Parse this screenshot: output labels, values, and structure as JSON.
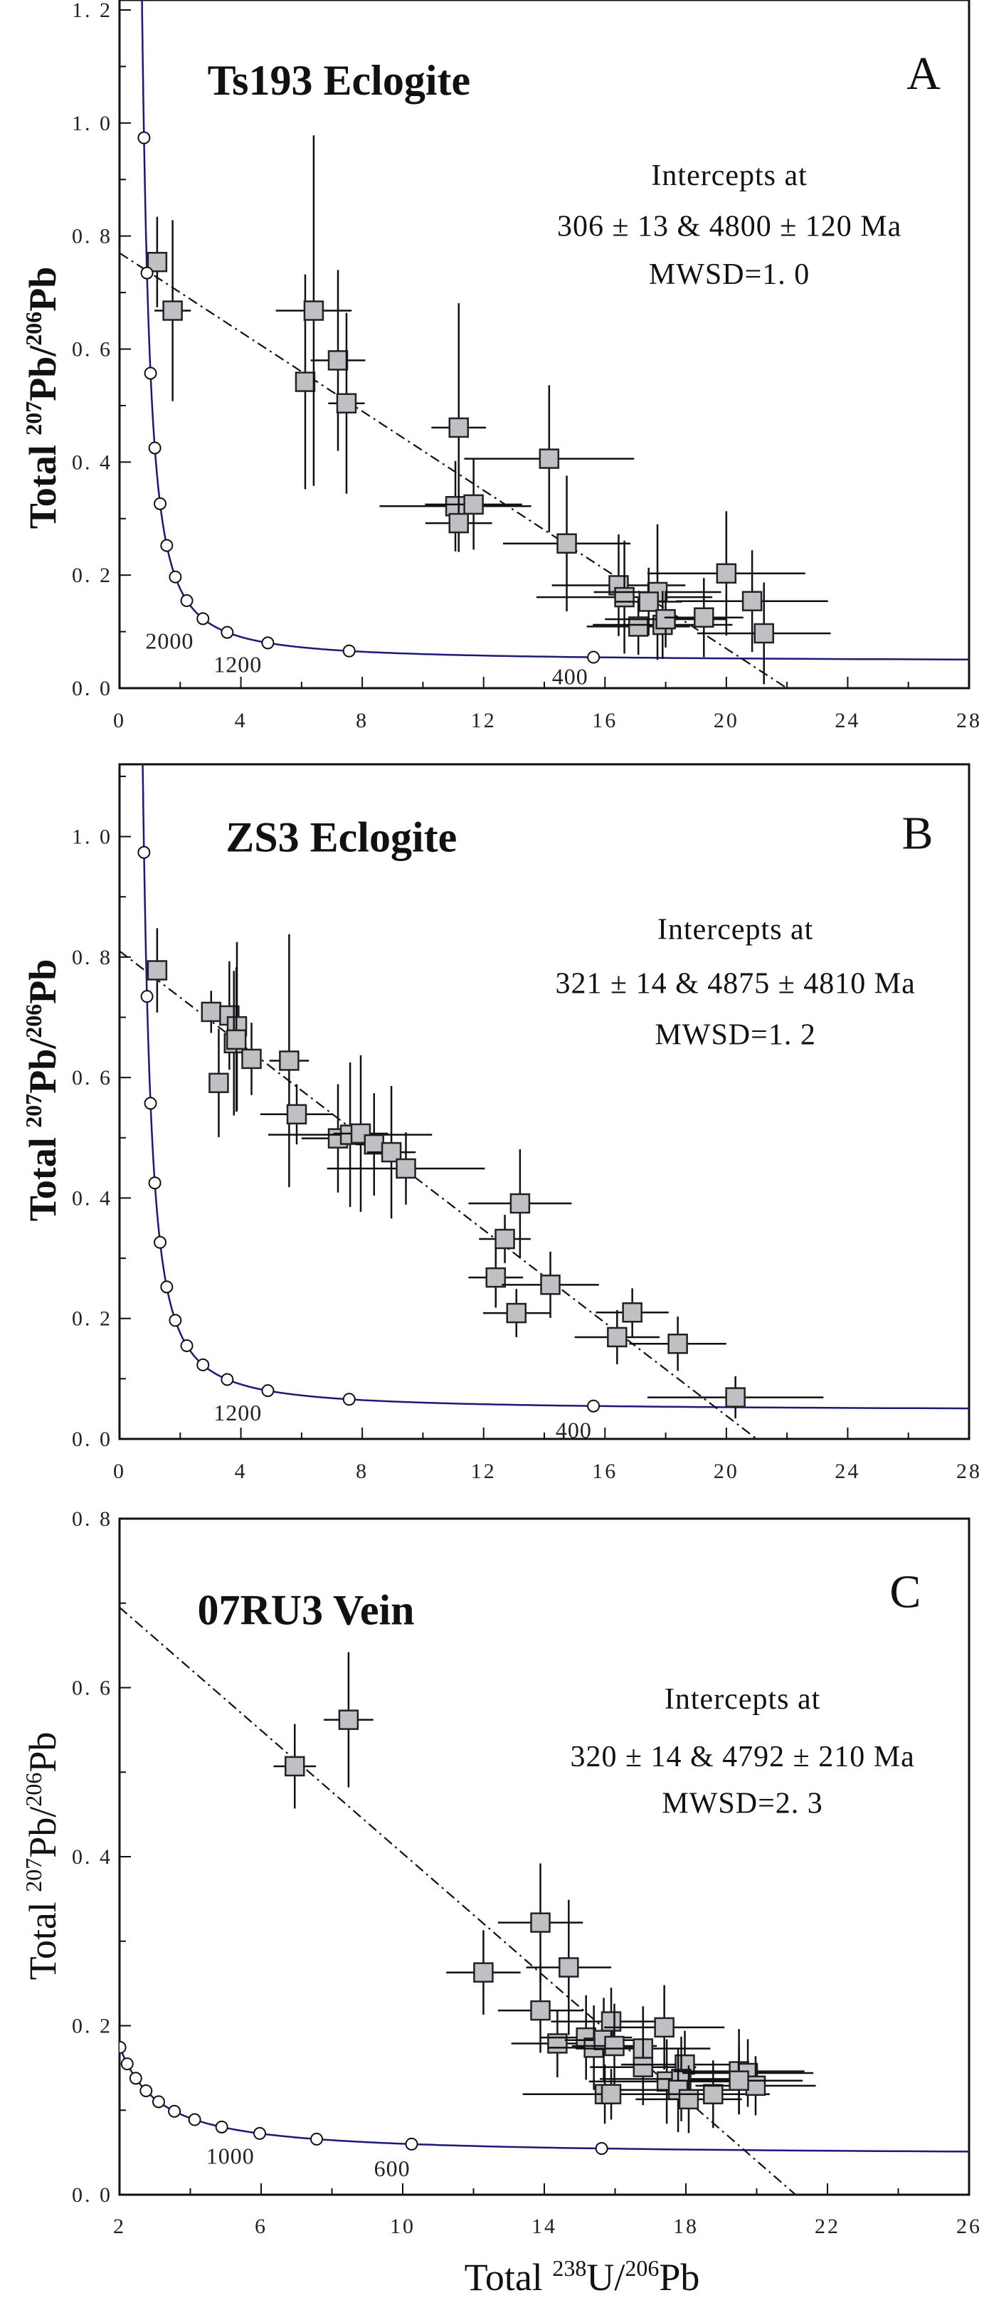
{
  "chart_data": [
    {
      "type": "scatter",
      "panel": "A",
      "title": "Ts193  Eclogite",
      "ylabel": {
        "prefix": "Total ",
        "sup1": "207",
        "mid": "Pb/",
        "sup2": "206",
        "suffix": "Pb"
      },
      "xlim": [
        0,
        28
      ],
      "ylim": [
        0,
        1.2
      ],
      "xticks": [
        0,
        4,
        8,
        12,
        16,
        20,
        24,
        28
      ],
      "yticks": [
        0,
        0.2,
        0.4,
        0.6,
        0.8,
        1.0,
        1.2
      ],
      "ytick_labels": [
        "0. 0",
        "0. 2",
        "0. 4",
        "0. 6",
        "0. 8",
        "1. 0",
        "1. 2"
      ],
      "annotation": [
        "Intercepts at",
        "306 ± 13 & 4800 ± 120 Ma",
        "MWSD=1. 0"
      ],
      "discordia": [
        [
          0,
          0.77
        ],
        [
          22.0,
          0
        ]
      ],
      "concordia_ages_ma": [
        400,
        800,
        1200,
        1600,
        2000,
        2400,
        2800,
        3200,
        3600,
        4000,
        4400,
        4800,
        5200
      ],
      "age_labels": [
        {
          "text": "2000",
          "x": 1.65,
          "y": 0.084
        },
        {
          "text": "1200",
          "x": 3.9,
          "y": 0.042
        },
        {
          "text": "400",
          "x": 14.85,
          "y": 0.021
        }
      ],
      "points": [
        [
          1.24,
          0.754,
          0.2,
          0.08
        ],
        [
          1.75,
          0.668,
          0.6,
          0.16
        ],
        [
          6.12,
          0.542,
          0.2,
          0.19
        ],
        [
          6.4,
          0.668,
          1.25,
          0.31
        ],
        [
          7.2,
          0.58,
          0.9,
          0.16
        ],
        [
          7.48,
          0.504,
          0.6,
          0.16
        ],
        [
          11.18,
          0.461,
          0.9,
          0.22
        ],
        [
          11.07,
          0.322,
          2.5,
          0.08
        ],
        [
          11.67,
          0.325,
          1.6,
          0.08
        ],
        [
          11.18,
          0.292,
          1.1,
          0.05
        ],
        [
          14.16,
          0.406,
          2.8,
          0.13
        ],
        [
          14.74,
          0.256,
          2.1,
          0.12
        ],
        [
          16.45,
          0.182,
          2.2,
          0.09
        ],
        [
          16.64,
          0.161,
          2.9,
          0.1
        ],
        [
          17.73,
          0.17,
          2.1,
          0.12
        ],
        [
          17.44,
          0.153,
          1.1,
          0.06
        ],
        [
          17.1,
          0.109,
          1.7,
          0.05
        ],
        [
          17.9,
          0.112,
          2.3,
          0.06
        ],
        [
          18.0,
          0.122,
          2.0,
          0.05
        ],
        [
          19.26,
          0.125,
          1.3,
          0.07
        ],
        [
          20.0,
          0.203,
          2.6,
          0.11
        ],
        [
          20.85,
          0.154,
          2.5,
          0.09
        ],
        [
          21.24,
          0.097,
          2.2,
          0.09
        ]
      ]
    },
    {
      "type": "scatter",
      "panel": "B",
      "title": "ZS3  Eclogite",
      "ylabel": {
        "prefix": "Total ",
        "sup1": "207",
        "mid": "Pb/",
        "sup2": "206",
        "suffix": "Pb"
      },
      "xlim": [
        0,
        28
      ],
      "ylim": [
        0,
        1.12
      ],
      "xticks": [
        0,
        4,
        8,
        12,
        16,
        20,
        24,
        28
      ],
      "yticks": [
        0,
        0.2,
        0.4,
        0.6,
        0.8,
        1.0
      ],
      "ytick_labels": [
        "0. 0",
        "0. 2",
        "0. 4",
        "0. 6",
        "0. 8",
        "1. 0"
      ],
      "annotation": [
        "Intercepts at",
        "321 ± 14 & 4875 ± 4810 Ma",
        "MWSD=1. 2"
      ],
      "discordia": [
        [
          0,
          0.81
        ],
        [
          21.0,
          0
        ]
      ],
      "concordia_ages_ma": [
        400,
        800,
        1200,
        1600,
        2000,
        2400,
        2800,
        3200,
        3600,
        4000,
        4400,
        4800,
        5200
      ],
      "age_labels": [
        {
          "text": "1200",
          "x": 3.9,
          "y": 0.044
        },
        {
          "text": "400",
          "x": 14.97,
          "y": 0.015
        }
      ],
      "points": [
        [
          1.24,
          0.778,
          0.2,
          0.07
        ],
        [
          3.02,
          0.709,
          0.2,
          0.035
        ],
        [
          3.27,
          0.591,
          0.2,
          0.09
        ],
        [
          3.62,
          0.703,
          0.2,
          0.09
        ],
        [
          3.87,
          0.685,
          0.2,
          0.14
        ],
        [
          3.77,
          0.657,
          0.2,
          0.12
        ],
        [
          3.85,
          0.663,
          0.2,
          0.12
        ],
        [
          4.35,
          0.631,
          0.2,
          0.06
        ],
        [
          5.59,
          0.628,
          0.65,
          0.21
        ],
        [
          5.84,
          0.539,
          1.2,
          0.05
        ],
        [
          7.2,
          0.499,
          1.2,
          0.09
        ],
        [
          7.6,
          0.505,
          2.7,
          0.12
        ],
        [
          7.95,
          0.507,
          0.9,
          0.13
        ],
        [
          8.39,
          0.489,
          0.6,
          0.085
        ],
        [
          8.96,
          0.476,
          0.8,
          0.11
        ],
        [
          9.44,
          0.449,
          2.6,
          0.06
        ],
        [
          13.2,
          0.391,
          1.7,
          0.09
        ],
        [
          12.7,
          0.332,
          0.85,
          0.04
        ],
        [
          12.4,
          0.268,
          0.9,
          0.05
        ],
        [
          14.2,
          0.256,
          1.6,
          0.055
        ],
        [
          13.08,
          0.209,
          1.1,
          0.04
        ],
        [
          16.9,
          0.21,
          1.2,
          0.04
        ],
        [
          16.4,
          0.169,
          1.4,
          0.045
        ],
        [
          18.4,
          0.158,
          1.6,
          0.045
        ],
        [
          20.3,
          0.069,
          2.9,
          0.035
        ]
      ]
    },
    {
      "type": "scatter",
      "panel": "C",
      "title": "07RU3  Vein",
      "ylabel": {
        "prefix": "Total ",
        "sup1": "207",
        "mid": "Pb/",
        "sup2": "206",
        "suffix": "Pb"
      },
      "xlabel": {
        "prefix": "Total ",
        "sup1": "238",
        "mid": "U/",
        "sup2": "206",
        "suffix": "Pb"
      },
      "xlim": [
        2,
        26
      ],
      "ylim": [
        0,
        0.8
      ],
      "xticks": [
        2,
        6,
        10,
        14,
        18,
        22,
        26
      ],
      "yticks": [
        0,
        0.2,
        0.4,
        0.6,
        0.8
      ],
      "ytick_labels": [
        "0. 0",
        "0. 2",
        "0. 4",
        "0. 6",
        "0. 8"
      ],
      "annotation": [
        "Intercepts at",
        "320 ± 14 & 4792 ± 210 Ma",
        "MWSD=2. 3"
      ],
      "discordia": [
        [
          2,
          0.695
        ],
        [
          21.1,
          0
        ]
      ],
      "concordia_ages_ma": [
        400,
        600,
        800,
        1000,
        1200,
        1400,
        1600,
        1800,
        2000,
        2200,
        2400,
        2600
      ],
      "age_labels": [
        {
          "text": "1000",
          "x": 5.13,
          "y": 0.046
        },
        {
          "text": "600",
          "x": 9.7,
          "y": 0.031
        }
      ],
      "points": [
        [
          6.95,
          0.507,
          0.6,
          0.05
        ],
        [
          8.47,
          0.562,
          0.7,
          0.08
        ],
        [
          12.28,
          0.263,
          1.05,
          0.05
        ],
        [
          13.89,
          0.322,
          1.2,
          0.07
        ],
        [
          14.69,
          0.269,
          1.2,
          0.08
        ],
        [
          13.89,
          0.218,
          1.2,
          0.05
        ],
        [
          14.37,
          0.179,
          1.3,
          0.04
        ],
        [
          15.18,
          0.186,
          1.3,
          0.05
        ],
        [
          15.4,
          0.174,
          1.3,
          0.05
        ],
        [
          15.68,
          0.183,
          1.1,
          0.05
        ],
        [
          15.89,
          0.205,
          1.7,
          0.04
        ],
        [
          15.98,
          0.176,
          1.2,
          0.05
        ],
        [
          16.79,
          0.173,
          1.9,
          0.05
        ],
        [
          16.79,
          0.151,
          1.5,
          0.045
        ],
        [
          17.39,
          0.198,
          1.7,
          0.05
        ],
        [
          17.46,
          0.134,
          2.2,
          0.05
        ],
        [
          17.97,
          0.154,
          1.8,
          0.04
        ],
        [
          17.87,
          0.137,
          2.3,
          0.05
        ],
        [
          17.78,
          0.124,
          1.7,
          0.05
        ],
        [
          18.08,
          0.113,
          1.5,
          0.04
        ],
        [
          18.77,
          0.119,
          1.6,
          0.04
        ],
        [
          19.5,
          0.146,
          1.85,
          0.05
        ],
        [
          19.75,
          0.144,
          1.85,
          0.04
        ],
        [
          19.97,
          0.129,
          1.7,
          0.035
        ],
        [
          19.5,
          0.135,
          1.8,
          0.04
        ],
        [
          15.71,
          0.119,
          1.6,
          0.035
        ],
        [
          15.89,
          0.119,
          2.5,
          0.03
        ]
      ]
    }
  ],
  "colors": {
    "concordia": "#1a1a7a",
    "marker_fill": "#c0c0c4",
    "axis": "#111111"
  }
}
